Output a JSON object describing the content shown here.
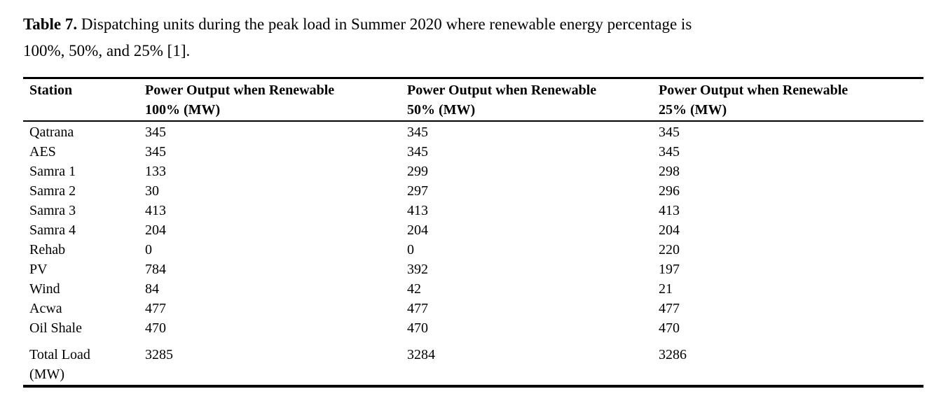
{
  "caption": {
    "label": "Table 7.",
    "line1_rest": " Dispatching units during the peak load in Summer 2020 where renewable energy percentage is",
    "line2": "100%, 50%, and 25% [1]."
  },
  "table": {
    "headers": {
      "station": "Station",
      "renewable_100": "Power Output when Renewable\n100% (MW)",
      "renewable_50": "Power Output when Renewable\n50% (MW)",
      "renewable_25": "Power Output when Renewable\n25% (MW)"
    },
    "rows": [
      {
        "station": "Qatrana",
        "p100": "345",
        "p50": "345",
        "p25": "345"
      },
      {
        "station": "AES",
        "p100": "345",
        "p50": "345",
        "p25": "345"
      },
      {
        "station": "Samra 1",
        "p100": "133",
        "p50": "299",
        "p25": "298"
      },
      {
        "station": "Samra 2",
        "p100": "30",
        "p50": "297",
        "p25": "296"
      },
      {
        "station": "Samra 3",
        "p100": "413",
        "p50": "413",
        "p25": "413"
      },
      {
        "station": "Samra 4",
        "p100": "204",
        "p50": "204",
        "p25": "204"
      },
      {
        "station": "Rehab",
        "p100": "0",
        "p50": "0",
        "p25": "220"
      },
      {
        "station": "PV",
        "p100": "784",
        "p50": "392",
        "p25": "197"
      },
      {
        "station": "Wind",
        "p100": "84",
        "p50": "42",
        "p25": "21"
      },
      {
        "station": "Acwa",
        "p100": "477",
        "p50": "477",
        "p25": "477"
      },
      {
        "station": "Oil Shale",
        "p100": "470",
        "p50": "470",
        "p25": "470"
      }
    ],
    "total": {
      "station": "Total Load\n(MW)",
      "p100": "3285",
      "p50": "3284",
      "p25": "3286"
    }
  },
  "chart_data": {
    "type": "table",
    "title": "Table 7. Dispatching units during the peak load in Summer 2020 where renewable energy percentage is 100%, 50%, and 25% [1].",
    "columns": [
      "Station",
      "Power Output when Renewable 100% (MW)",
      "Power Output when Renewable 50% (MW)",
      "Power Output when Renewable 25% (MW)"
    ],
    "rows": [
      [
        "Qatrana",
        345,
        345,
        345
      ],
      [
        "AES",
        345,
        345,
        345
      ],
      [
        "Samra 1",
        133,
        299,
        298
      ],
      [
        "Samra 2",
        30,
        297,
        296
      ],
      [
        "Samra 3",
        413,
        413,
        413
      ],
      [
        "Samra 4",
        204,
        204,
        204
      ],
      [
        "Rehab",
        0,
        0,
        220
      ],
      [
        "PV",
        784,
        392,
        197
      ],
      [
        "Wind",
        84,
        42,
        21
      ],
      [
        "Acwa",
        477,
        477,
        477
      ],
      [
        "Oil Shale",
        470,
        470,
        470
      ],
      [
        "Total Load (MW)",
        3285,
        3284,
        3286
      ]
    ]
  }
}
